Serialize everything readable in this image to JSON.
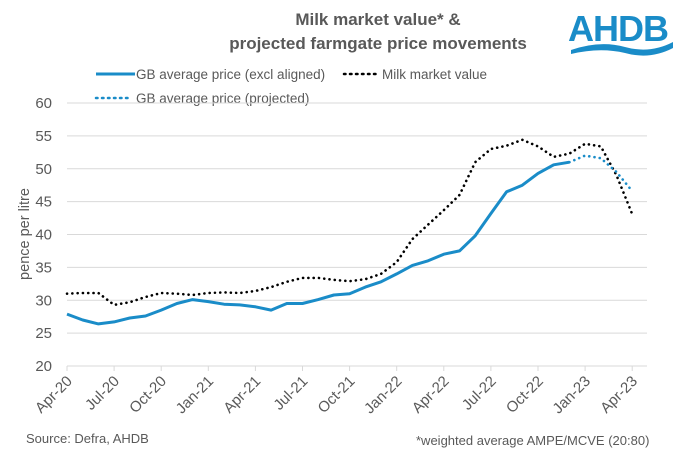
{
  "chart_data": {
    "type": "line",
    "title": [
      "Milk market value* &",
      "projected farmgate price movements"
    ],
    "xlabel": "",
    "ylabel": "pence per litre",
    "ylim": [
      20,
      60
    ],
    "yticks": [
      20,
      25,
      30,
      35,
      40,
      45,
      50,
      55,
      60
    ],
    "grid": true,
    "legend_position": "top",
    "x": [
      "Apr-20",
      "May-20",
      "Jun-20",
      "Jul-20",
      "Aug-20",
      "Sep-20",
      "Oct-20",
      "Nov-20",
      "Dec-20",
      "Jan-21",
      "Feb-21",
      "Mar-21",
      "Apr-21",
      "May-21",
      "Jun-21",
      "Jul-21",
      "Aug-21",
      "Sep-21",
      "Oct-21",
      "Nov-21",
      "Dec-21",
      "Jan-22",
      "Feb-22",
      "Mar-22",
      "Apr-22",
      "May-22",
      "Jun-22",
      "Jul-22",
      "Aug-22",
      "Sep-22",
      "Oct-22",
      "Nov-22",
      "Dec-22",
      "Jan-23",
      "Feb-23",
      "Mar-23",
      "Apr-23"
    ],
    "xtick_labels": [
      "Apr-20",
      "Jul-20",
      "Oct-20",
      "Jan-21",
      "Apr-21",
      "Jul-21",
      "Oct-21",
      "Jan-22",
      "Apr-22",
      "Jul-22",
      "Oct-22",
      "Jan-23",
      "Apr-23"
    ],
    "series": [
      {
        "name": "GB average price (excl aligned)",
        "style": "solid",
        "color": "#1a8cc8",
        "values": [
          27.9,
          27.0,
          26.4,
          26.7,
          27.3,
          27.6,
          28.5,
          29.5,
          30.1,
          29.8,
          29.4,
          29.3,
          29.0,
          28.5,
          29.5,
          29.5,
          30.1,
          30.8,
          31.0,
          32.0,
          32.8,
          34.0,
          35.3,
          36.0,
          37.0,
          37.5,
          39.8,
          43.2,
          46.5,
          47.5,
          49.3,
          50.6,
          51.0,
          null,
          null,
          null,
          null
        ]
      },
      {
        "name": "Milk market value",
        "style": "dotted",
        "color": "#000000",
        "values": [
          31.0,
          31.1,
          31.1,
          29.3,
          29.7,
          30.5,
          31.1,
          31.0,
          30.8,
          31.1,
          31.2,
          31.1,
          31.4,
          32.0,
          32.8,
          33.4,
          33.4,
          33.1,
          32.9,
          33.2,
          34.0,
          35.8,
          39.3,
          41.5,
          43.7,
          46.0,
          51.0,
          53.0,
          53.5,
          54.4,
          53.4,
          51.8,
          52.3,
          53.8,
          53.4,
          49.0,
          43.1
        ]
      },
      {
        "name": "GB average price (projected)",
        "style": "dotted",
        "color": "#1a8cc8",
        "values": [
          null,
          null,
          null,
          null,
          null,
          null,
          null,
          null,
          null,
          null,
          null,
          null,
          null,
          null,
          null,
          null,
          null,
          null,
          null,
          null,
          null,
          null,
          null,
          null,
          null,
          null,
          null,
          null,
          null,
          null,
          null,
          null,
          51.0,
          52.0,
          51.6,
          49.5,
          46.6
        ]
      }
    ]
  },
  "logo": {
    "text": "AHDB",
    "color": "#1a8cc8"
  },
  "footer": {
    "source": "Source: Defra, AHDB",
    "note": "*weighted average AMPE/MCVE  (20:80)"
  }
}
